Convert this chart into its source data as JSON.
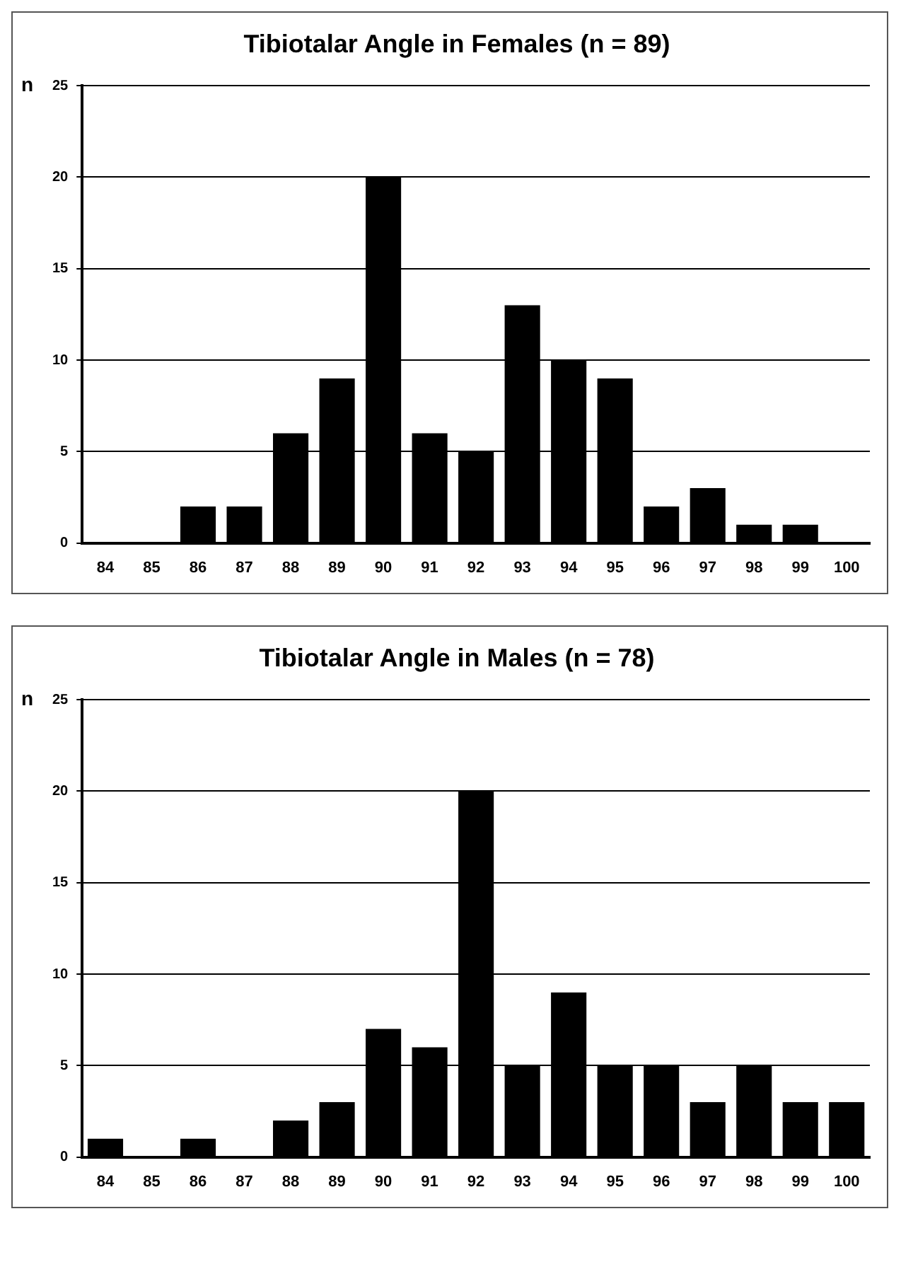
{
  "chart_data": [
    {
      "type": "bar",
      "title": "Tibiotalar Angle in Females (n = 89)",
      "ylabel": "n",
      "categories": [
        "84",
        "85",
        "86",
        "87",
        "88",
        "89",
        "90",
        "91",
        "92",
        "93",
        "94",
        "95",
        "96",
        "97",
        "98",
        "99",
        "100"
      ],
      "values": [
        0,
        0,
        2,
        2,
        6,
        9,
        20,
        6,
        5,
        13,
        10,
        9,
        2,
        3,
        1,
        1,
        0
      ],
      "color": "#000000",
      "ylim": [
        0,
        25
      ],
      "yticks": [
        0,
        5,
        10,
        15,
        20,
        25
      ],
      "grid": "y",
      "legend": false
    },
    {
      "type": "bar",
      "title": "Tibiotalar Angle in Males (n = 78)",
      "ylabel": "n",
      "categories": [
        "84",
        "85",
        "86",
        "87",
        "88",
        "89",
        "90",
        "91",
        "92",
        "93",
        "94",
        "95",
        "96",
        "97",
        "98",
        "99",
        "100"
      ],
      "values": [
        1,
        0,
        1,
        0,
        2,
        3,
        7,
        6,
        20,
        5,
        9,
        5,
        5,
        3,
        5,
        3,
        3
      ],
      "color": "#000000",
      "ylim": [
        0,
        25
      ],
      "yticks": [
        0,
        5,
        10,
        15,
        20,
        25
      ],
      "grid": "y",
      "legend": false
    }
  ]
}
